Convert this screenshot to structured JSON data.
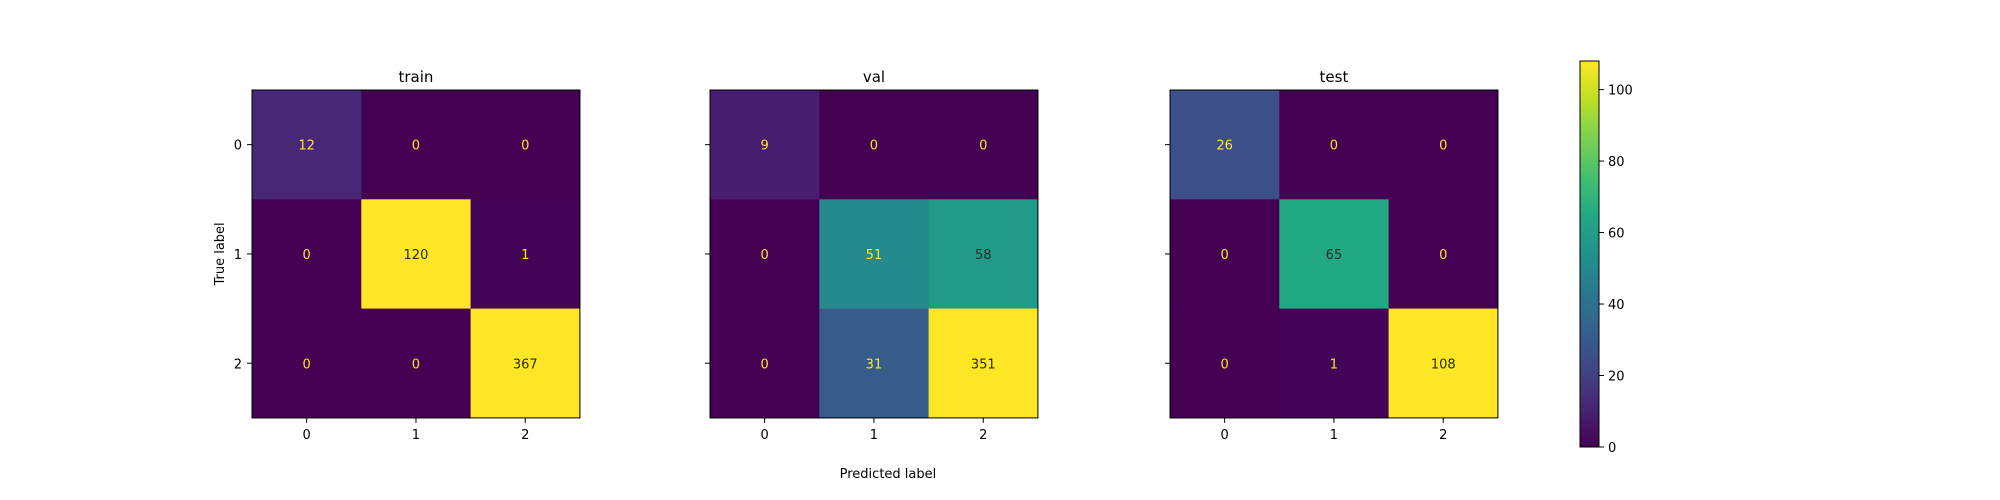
{
  "chart_data": [
    {
      "type": "heatmap",
      "title": "train",
      "xlabel": "",
      "ylabel": "True label",
      "x_categories": [
        "0",
        "1",
        "2"
      ],
      "y_categories": [
        "0",
        "1",
        "2"
      ],
      "matrix": [
        [
          12,
          0,
          0
        ],
        [
          0,
          120,
          1
        ],
        [
          0,
          0,
          367
        ]
      ],
      "color_range": [
        0,
        108
      ],
      "colormap": "viridis"
    },
    {
      "type": "heatmap",
      "title": "val",
      "xlabel": "Predicted label",
      "ylabel": "",
      "x_categories": [
        "0",
        "1",
        "2"
      ],
      "y_categories": [
        "0",
        "1",
        "2"
      ],
      "matrix": [
        [
          9,
          0,
          0
        ],
        [
          0,
          51,
          58
        ],
        [
          0,
          31,
          351
        ]
      ],
      "color_range": [
        0,
        108
      ],
      "colormap": "viridis"
    },
    {
      "type": "heatmap",
      "title": "test",
      "xlabel": "",
      "ylabel": "",
      "x_categories": [
        "0",
        "1",
        "2"
      ],
      "y_categories": [
        "0",
        "1",
        "2"
      ],
      "matrix": [
        [
          26,
          0,
          0
        ],
        [
          0,
          65,
          0
        ],
        [
          0,
          1,
          108
        ]
      ],
      "color_range": [
        0,
        108
      ],
      "colormap": "viridis"
    }
  ],
  "colorbar": {
    "range": [
      0,
      108
    ],
    "ticks": [
      "0",
      "20",
      "40",
      "60",
      "80",
      "100"
    ],
    "tick_values": [
      0,
      20,
      40,
      60,
      80,
      100
    ]
  },
  "shared_ylabel": "True label",
  "shared_xlabel": "Predicted label"
}
